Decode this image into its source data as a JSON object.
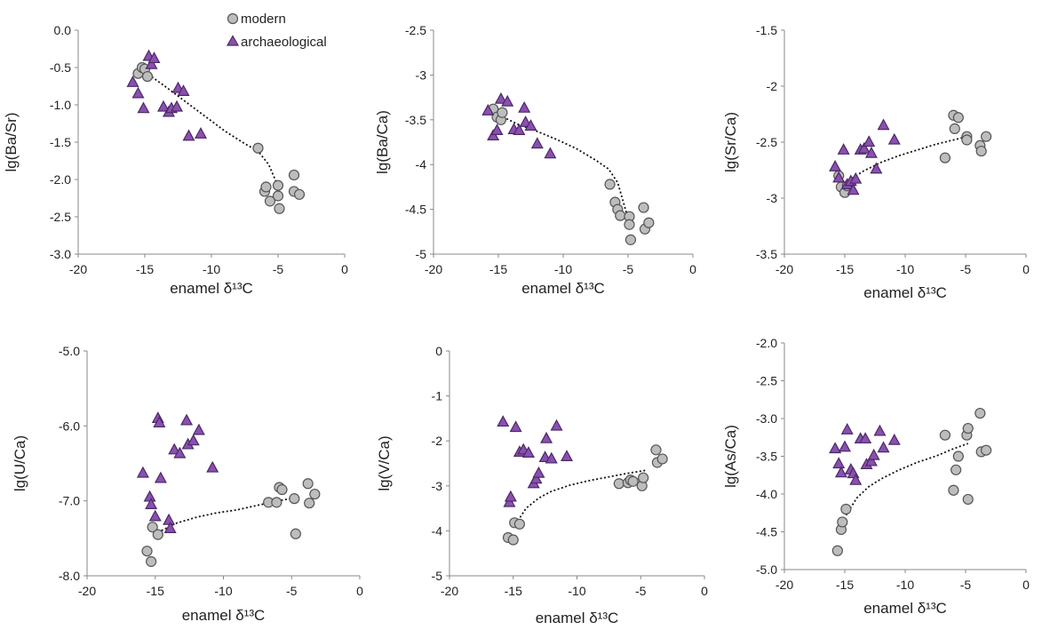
{
  "legend": {
    "modern": "modern",
    "archaeological": "archaeological"
  },
  "colors": {
    "modern_fill": "#bdbdbd",
    "modern_stroke": "#555555",
    "archaeological_fill": "#8b4fb0",
    "archaeological_stroke": "#4a2a66",
    "axis": "#888888",
    "trend": "#111111"
  },
  "chart_data": [
    {
      "type": "scatter",
      "ylabel": "lg(Ba/Sr)",
      "xlabel": "enamel δ¹³C",
      "xlim": [
        -20,
        0
      ],
      "xticks": [
        -20,
        -15,
        -10,
        -5,
        0
      ],
      "ylim": [
        -3.0,
        0.0
      ],
      "yticks": [
        0.0,
        -0.5,
        -1.0,
        -1.5,
        -2.0,
        -2.5,
        -3.0
      ],
      "ytick_labels": [
        "0.0",
        "-0.5",
        "-1.0",
        "-1.5",
        "-2.0",
        "-2.5",
        "-3.0"
      ],
      "legend": true,
      "series": [
        {
          "name": "modern",
          "points": [
            [
              -15.5,
              -0.58
            ],
            [
              -15.2,
              -0.5
            ],
            [
              -15.0,
              -0.52
            ],
            [
              -14.8,
              -0.62
            ],
            [
              -6.5,
              -1.58
            ],
            [
              -6.0,
              -2.16
            ],
            [
              -5.9,
              -2.1
            ],
            [
              -5.6,
              -2.29
            ],
            [
              -5.0,
              -2.08
            ],
            [
              -5.0,
              -2.22
            ],
            [
              -4.9,
              -2.39
            ],
            [
              -3.8,
              -1.94
            ],
            [
              -3.8,
              -2.16
            ],
            [
              -3.4,
              -2.2
            ]
          ]
        },
        {
          "name": "archaeological",
          "points": [
            [
              -15.9,
              -0.7
            ],
            [
              -15.5,
              -0.85
            ],
            [
              -15.1,
              -1.05
            ],
            [
              -14.7,
              -0.35
            ],
            [
              -14.5,
              -0.46
            ],
            [
              -14.3,
              -0.38
            ],
            [
              -13.6,
              -1.03
            ],
            [
              -13.2,
              -1.1
            ],
            [
              -13.0,
              -1.05
            ],
            [
              -12.6,
              -1.03
            ],
            [
              -12.5,
              -0.78
            ],
            [
              -12.1,
              -0.82
            ],
            [
              -11.7,
              -1.42
            ],
            [
              -10.8,
              -1.39
            ]
          ]
        }
      ],
      "trend": [
        [
          -15.2,
          -0.53
        ],
        [
          -13.5,
          -0.75
        ],
        [
          -12.0,
          -0.95
        ],
        [
          -10.5,
          -1.15
        ],
        [
          -9.0,
          -1.35
        ],
        [
          -7.5,
          -1.52
        ],
        [
          -6.5,
          -1.62
        ],
        [
          -5.7,
          -1.8
        ],
        [
          -5.1,
          -2.05
        ]
      ]
    },
    {
      "type": "scatter",
      "ylabel": "lg(Ba/Ca)",
      "xlabel": "enamel δ¹³C",
      "xlim": [
        -20,
        0
      ],
      "xticks": [
        -20,
        -15,
        -10,
        -5,
        0
      ],
      "ylim": [
        -5,
        -2.5
      ],
      "yticks": [
        -2.5,
        -3,
        -3.5,
        -4,
        -4.5,
        -5
      ],
      "ytick_labels": [
        "-2.5",
        "-3",
        "-3.5",
        "-4",
        "-4.5",
        "-5"
      ],
      "legend": false,
      "series": [
        {
          "name": "modern",
          "points": [
            [
              -15.4,
              -3.38
            ],
            [
              -15.1,
              -3.47
            ],
            [
              -14.8,
              -3.5
            ],
            [
              -14.7,
              -3.42
            ],
            [
              -6.4,
              -4.22
            ],
            [
              -6.0,
              -4.42
            ],
            [
              -5.8,
              -4.5
            ],
            [
              -5.6,
              -4.57
            ],
            [
              -4.9,
              -4.58
            ],
            [
              -4.9,
              -4.67
            ],
            [
              -4.8,
              -4.84
            ],
            [
              -3.8,
              -4.48
            ],
            [
              -3.7,
              -4.72
            ],
            [
              -3.4,
              -4.65
            ]
          ]
        },
        {
          "name": "archaeological",
          "points": [
            [
              -15.8,
              -3.4
            ],
            [
              -15.4,
              -3.68
            ],
            [
              -15.1,
              -3.62
            ],
            [
              -14.8,
              -3.27
            ],
            [
              -14.3,
              -3.3
            ],
            [
              -13.8,
              -3.61
            ],
            [
              -13.4,
              -3.62
            ],
            [
              -13.0,
              -3.37
            ],
            [
              -12.9,
              -3.53
            ],
            [
              -12.5,
              -3.57
            ],
            [
              -12.0,
              -3.77
            ],
            [
              -11.0,
              -3.88
            ]
          ]
        }
      ],
      "trend": [
        [
          -15.2,
          -3.43
        ],
        [
          -13.5,
          -3.55
        ],
        [
          -12.0,
          -3.63
        ],
        [
          -10.5,
          -3.72
        ],
        [
          -9.0,
          -3.82
        ],
        [
          -7.5,
          -3.95
        ],
        [
          -6.5,
          -4.05
        ],
        [
          -5.8,
          -4.2
        ],
        [
          -5.0,
          -4.6
        ]
      ]
    },
    {
      "type": "scatter",
      "ylabel": "lg(Sr/Ca)",
      "xlabel": "enamel δ¹³C",
      "xlim": [
        -20,
        0
      ],
      "xticks": [
        -20,
        -15,
        -10,
        -5,
        0
      ],
      "ylim": [
        -3.5,
        -1.5
      ],
      "yticks": [
        -1.5,
        -2,
        -2.5,
        -3,
        -3.5
      ],
      "ytick_labels": [
        "-1.5",
        "-2",
        "-2.5",
        "-3",
        "-3.5"
      ],
      "legend": false,
      "series": [
        {
          "name": "modern",
          "points": [
            [
              -15.5,
              -2.8
            ],
            [
              -15.3,
              -2.9
            ],
            [
              -15.0,
              -2.95
            ],
            [
              -14.8,
              -2.89
            ],
            [
              -6.7,
              -2.64
            ],
            [
              -6.0,
              -2.26
            ],
            [
              -5.9,
              -2.38
            ],
            [
              -5.6,
              -2.28
            ],
            [
              -4.9,
              -2.45
            ],
            [
              -4.9,
              -2.48
            ],
            [
              -3.8,
              -2.53
            ],
            [
              -3.7,
              -2.58
            ],
            [
              -3.3,
              -2.45
            ]
          ]
        },
        {
          "name": "archaeological",
          "points": [
            [
              -15.8,
              -2.72
            ],
            [
              -15.5,
              -2.82
            ],
            [
              -15.1,
              -2.57
            ],
            [
              -14.8,
              -2.88
            ],
            [
              -14.5,
              -2.85
            ],
            [
              -14.3,
              -2.93
            ],
            [
              -14.1,
              -2.83
            ],
            [
              -13.7,
              -2.57
            ],
            [
              -13.4,
              -2.56
            ],
            [
              -13.0,
              -2.5
            ],
            [
              -12.8,
              -2.6
            ],
            [
              -12.4,
              -2.74
            ],
            [
              -11.8,
              -2.35
            ],
            [
              -10.9,
              -2.48
            ]
          ]
        }
      ],
      "trend": [
        [
          -15.2,
          -2.88
        ],
        [
          -13.5,
          -2.76
        ],
        [
          -12.0,
          -2.68
        ],
        [
          -10.5,
          -2.62
        ],
        [
          -9.0,
          -2.57
        ],
        [
          -7.5,
          -2.52
        ],
        [
          -6.0,
          -2.48
        ],
        [
          -4.5,
          -2.44
        ]
      ]
    },
    {
      "type": "scatter",
      "ylabel": "lg(U/Ca)",
      "xlabel": "enamel δ¹³C",
      "xlim": [
        -20,
        0
      ],
      "xticks": [
        -20,
        -15,
        -10,
        -5,
        0
      ],
      "ylim": [
        -8.0,
        -5.0
      ],
      "yticks": [
        -5.0,
        -6.0,
        -7.0,
        -8.0
      ],
      "ytick_labels": [
        "-5.0",
        "-6.0",
        "-7.0",
        "-8.0"
      ],
      "legend": false,
      "series": [
        {
          "name": "modern",
          "points": [
            [
              -15.6,
              -7.67
            ],
            [
              -15.3,
              -7.81
            ],
            [
              -15.2,
              -7.35
            ],
            [
              -14.8,
              -7.45
            ],
            [
              -6.7,
              -7.02
            ],
            [
              -6.1,
              -7.02
            ],
            [
              -5.9,
              -6.82
            ],
            [
              -5.7,
              -6.85
            ],
            [
              -4.8,
              -6.97
            ],
            [
              -4.7,
              -7.44
            ],
            [
              -3.8,
              -6.77
            ],
            [
              -3.7,
              -7.03
            ],
            [
              -3.3,
              -6.91
            ]
          ]
        },
        {
          "name": "archaeological",
          "points": [
            [
              -15.9,
              -6.63
            ],
            [
              -15.4,
              -6.95
            ],
            [
              -15.3,
              -7.05
            ],
            [
              -15.0,
              -7.21
            ],
            [
              -14.8,
              -5.9
            ],
            [
              -14.7,
              -5.96
            ],
            [
              -14.6,
              -6.7
            ],
            [
              -14.0,
              -7.26
            ],
            [
              -13.9,
              -7.37
            ],
            [
              -13.6,
              -6.32
            ],
            [
              -13.2,
              -6.37
            ],
            [
              -12.7,
              -5.93
            ],
            [
              -12.6,
              -6.25
            ],
            [
              -12.2,
              -6.2
            ],
            [
              -11.8,
              -6.06
            ],
            [
              -10.8,
              -6.56
            ]
          ]
        }
      ],
      "trend": [
        [
          -14.8,
          -7.42
        ],
        [
          -13.5,
          -7.3
        ],
        [
          -12.0,
          -7.22
        ],
        [
          -10.5,
          -7.16
        ],
        [
          -9.0,
          -7.12
        ],
        [
          -7.5,
          -7.06
        ],
        [
          -6.0,
          -7.0
        ],
        [
          -4.5,
          -6.95
        ]
      ]
    },
    {
      "type": "scatter",
      "ylabel": "lg(V/Ca)",
      "xlabel": "enamel δ¹³C",
      "xlim": [
        -20,
        0
      ],
      "xticks": [
        -20,
        -15,
        -10,
        -5,
        0
      ],
      "ylim": [
        -5,
        0
      ],
      "yticks": [
        0,
        -1,
        -2,
        -3,
        -4,
        -5
      ],
      "ytick_labels": [
        "0",
        "-1",
        "-2",
        "-3",
        "-4",
        "-5"
      ],
      "legend": false,
      "series": [
        {
          "name": "modern",
          "points": [
            [
              -15.4,
              -4.15
            ],
            [
              -15.0,
              -4.2
            ],
            [
              -14.9,
              -3.82
            ],
            [
              -14.5,
              -3.85
            ],
            [
              -6.7,
              -2.95
            ],
            [
              -6.0,
              -2.93
            ],
            [
              -5.8,
              -2.87
            ],
            [
              -5.6,
              -2.9
            ],
            [
              -4.9,
              -3.0
            ],
            [
              -4.8,
              -2.82
            ],
            [
              -3.8,
              -2.2
            ],
            [
              -3.7,
              -2.48
            ],
            [
              -3.3,
              -2.4
            ]
          ]
        },
        {
          "name": "archaeological",
          "points": [
            [
              -15.8,
              -1.58
            ],
            [
              -15.3,
              -3.37
            ],
            [
              -15.2,
              -3.25
            ],
            [
              -14.8,
              -1.7
            ],
            [
              -14.5,
              -2.25
            ],
            [
              -14.2,
              -2.2
            ],
            [
              -13.8,
              -2.27
            ],
            [
              -13.4,
              -2.95
            ],
            [
              -13.2,
              -2.85
            ],
            [
              -13.0,
              -2.72
            ],
            [
              -12.5,
              -2.37
            ],
            [
              -12.4,
              -1.95
            ],
            [
              -12.0,
              -2.4
            ],
            [
              -11.6,
              -1.67
            ],
            [
              -10.8,
              -2.35
            ]
          ]
        }
      ],
      "trend": [
        [
          -14.8,
          -3.85
        ],
        [
          -14.0,
          -3.5
        ],
        [
          -13.0,
          -3.27
        ],
        [
          -12.0,
          -3.12
        ],
        [
          -10.5,
          -2.98
        ],
        [
          -9.0,
          -2.88
        ],
        [
          -7.5,
          -2.8
        ],
        [
          -6.0,
          -2.72
        ],
        [
          -4.5,
          -2.65
        ]
      ]
    },
    {
      "type": "scatter",
      "ylabel": "lg(As/Ca)",
      "xlabel": "enamel δ¹³C",
      "xlim": [
        -20,
        0
      ],
      "xticks": [
        -20,
        -15,
        -10,
        -5,
        0
      ],
      "ylim": [
        -5.0,
        -2.0
      ],
      "yticks": [
        -2.0,
        -2.5,
        -3.0,
        -3.5,
        -4.0,
        -4.5,
        -5.0
      ],
      "ytick_labels": [
        "-2.0",
        "-2.5",
        "-3.0",
        "-3.5",
        "-4.0",
        "-4.5",
        "-5.0"
      ],
      "legend": false,
      "series": [
        {
          "name": "modern",
          "points": [
            [
              -15.6,
              -4.75
            ],
            [
              -15.3,
              -4.47
            ],
            [
              -15.2,
              -4.37
            ],
            [
              -14.9,
              -4.2
            ],
            [
              -6.7,
              -3.22
            ],
            [
              -6.0,
              -3.95
            ],
            [
              -5.8,
              -3.68
            ],
            [
              -5.6,
              -3.5
            ],
            [
              -4.9,
              -3.22
            ],
            [
              -4.8,
              -3.13
            ],
            [
              -4.8,
              -4.07
            ],
            [
              -3.8,
              -2.93
            ],
            [
              -3.7,
              -3.44
            ],
            [
              -3.3,
              -3.42
            ]
          ]
        },
        {
          "name": "archaeological",
          "points": [
            [
              -15.8,
              -3.4
            ],
            [
              -15.5,
              -3.6
            ],
            [
              -15.3,
              -3.72
            ],
            [
              -15.0,
              -3.38
            ],
            [
              -14.8,
              -3.15
            ],
            [
              -14.5,
              -3.68
            ],
            [
              -14.3,
              -3.73
            ],
            [
              -14.1,
              -3.82
            ],
            [
              -13.7,
              -3.27
            ],
            [
              -13.3,
              -3.27
            ],
            [
              -13.2,
              -3.61
            ],
            [
              -12.8,
              -3.57
            ],
            [
              -12.6,
              -3.49
            ],
            [
              -12.1,
              -3.17
            ],
            [
              -11.8,
              -3.39
            ],
            [
              -10.9,
              -3.29
            ]
          ]
        }
      ],
      "trend": [
        [
          -14.9,
          -4.28
        ],
        [
          -14.0,
          -4.05
        ],
        [
          -13.0,
          -3.9
        ],
        [
          -12.0,
          -3.8
        ],
        [
          -10.5,
          -3.68
        ],
        [
          -9.0,
          -3.58
        ],
        [
          -7.5,
          -3.5
        ],
        [
          -6.0,
          -3.4
        ],
        [
          -4.8,
          -3.33
        ]
      ]
    }
  ]
}
